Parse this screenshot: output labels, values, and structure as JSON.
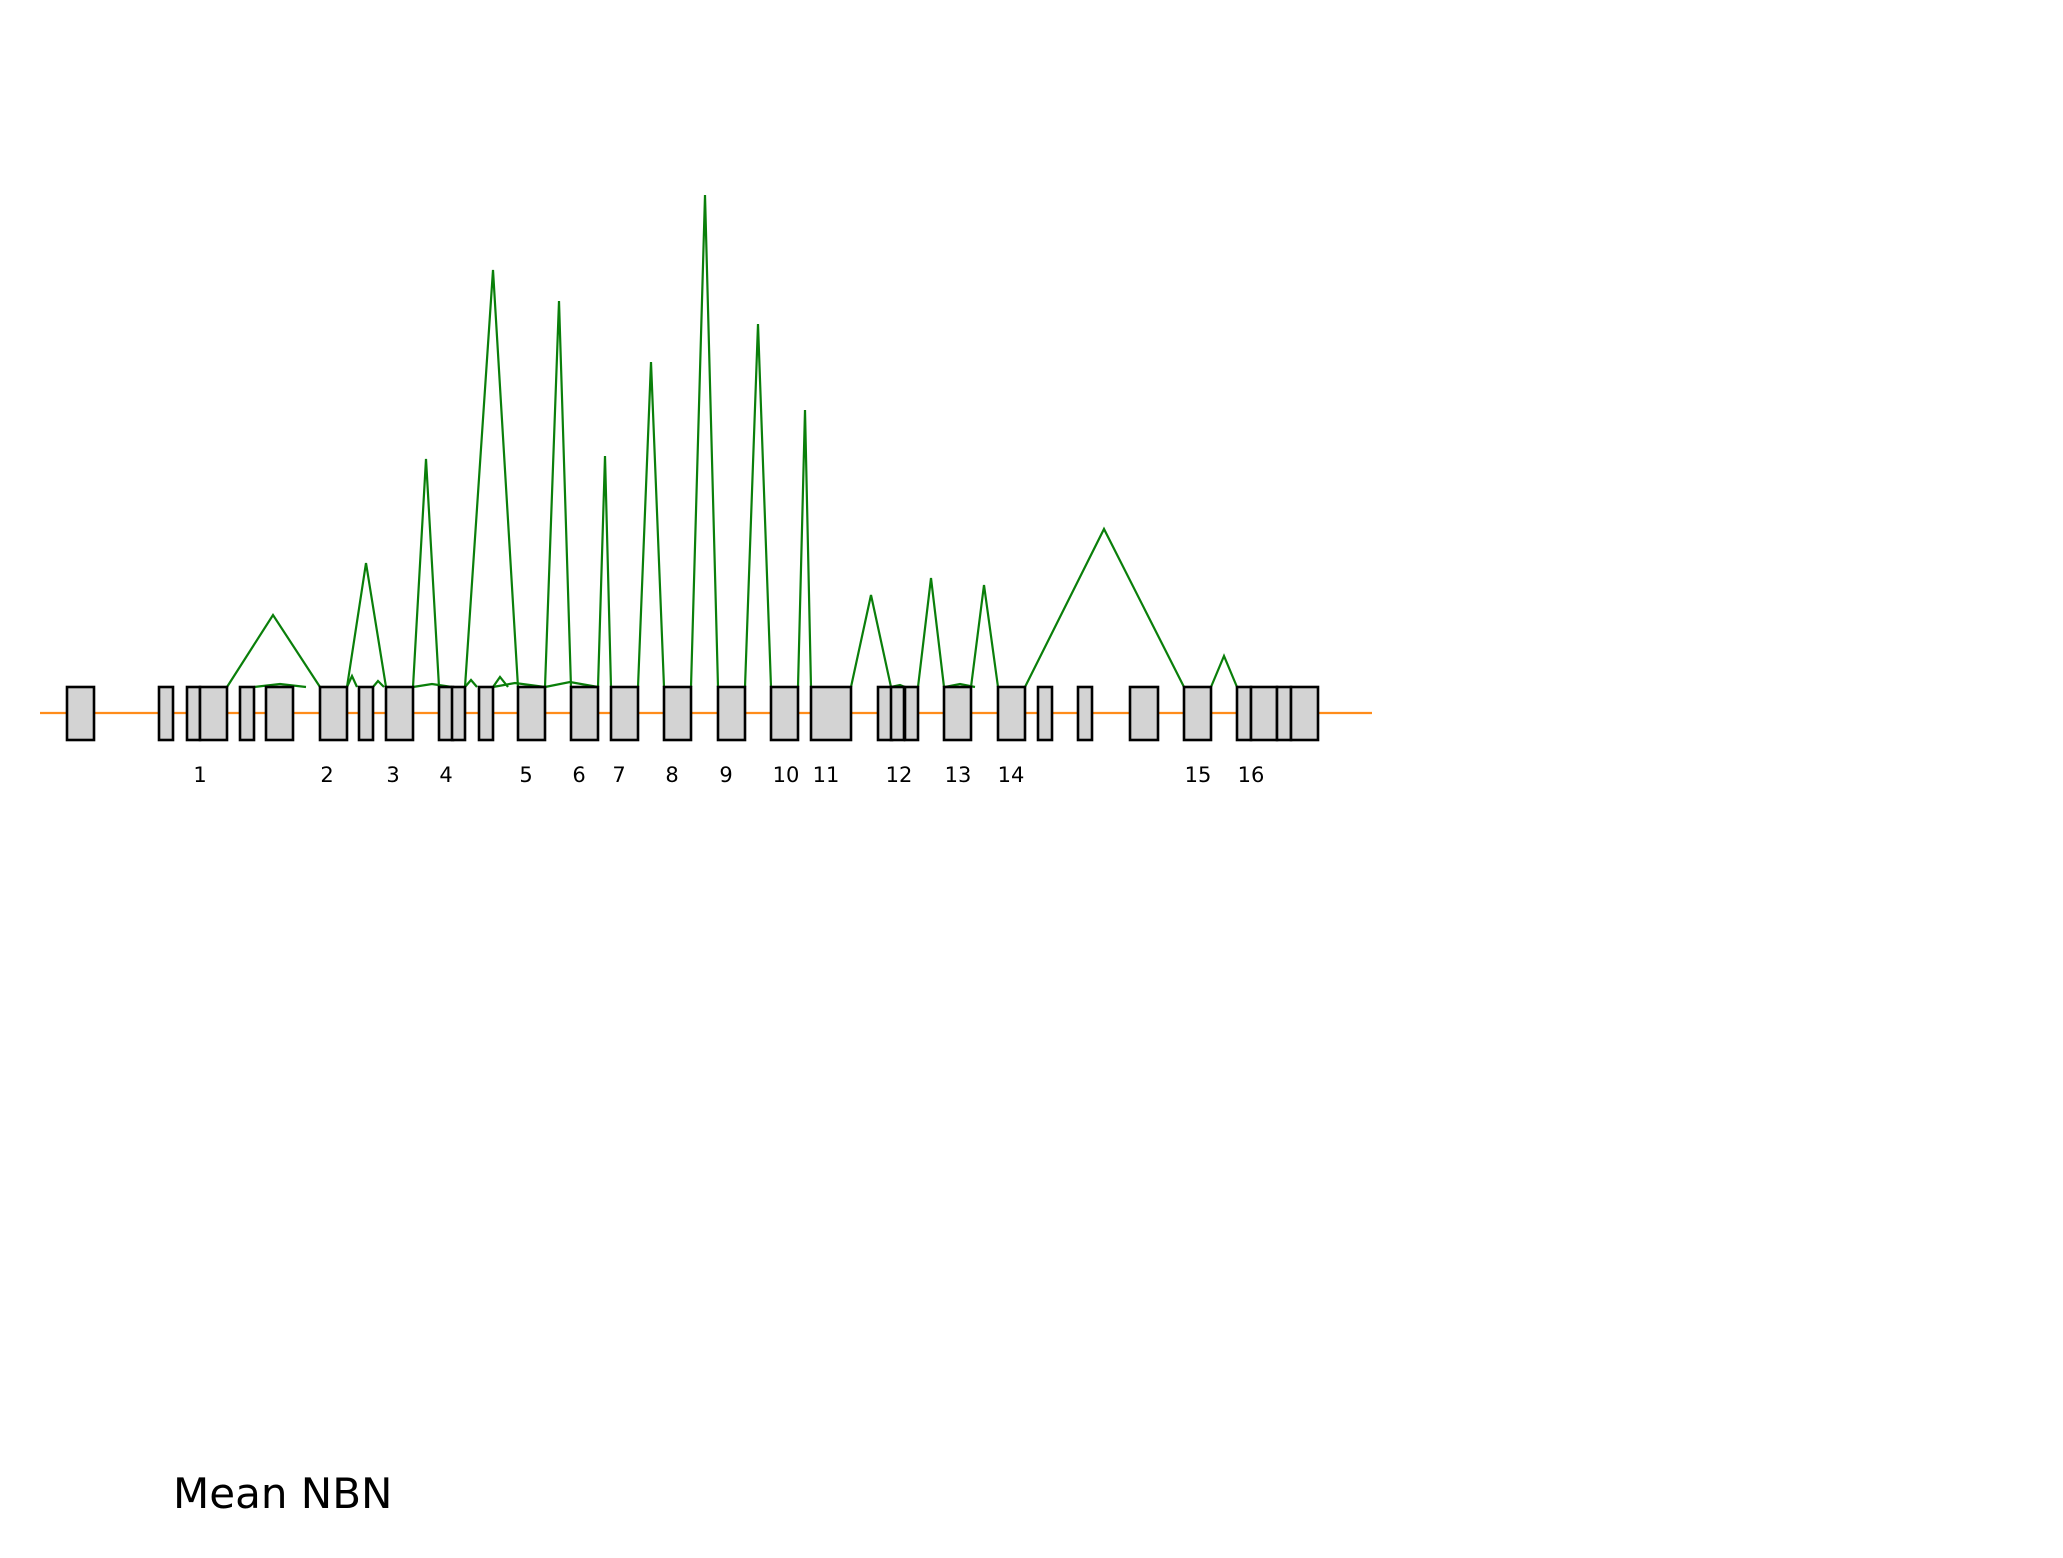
{
  "title": "Mean NBN",
  "colors": {
    "backbone": "#ff8c1a",
    "exon_fill": "#d3d3d3",
    "exon_stroke": "#000000",
    "junction": "#0a7f0a"
  },
  "exon_labels": [
    "1",
    "2",
    "3",
    "4",
    "5",
    "6",
    "7",
    "8",
    "9",
    "10",
    "11",
    "12",
    "13",
    "14",
    "15",
    "16"
  ]
}
